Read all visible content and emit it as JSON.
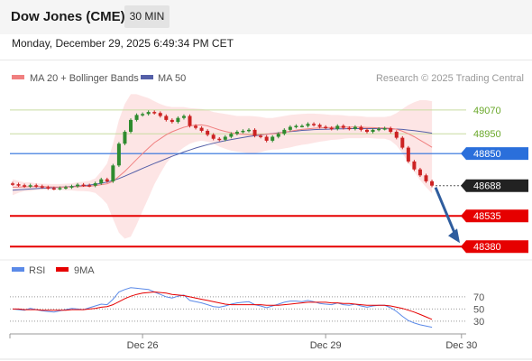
{
  "header": {
    "title": "Dow Jones (CME)",
    "timeframe": "30 MIN",
    "datetime": "Monday, December 29, 2025 6:49:34 PM CET"
  },
  "colors": {
    "ma20": "#f08080",
    "ma50": "#5560a8",
    "bollinger_fill": "#fde0e0",
    "up_candle": "#2e8b2e",
    "down_candle": "#cc2222",
    "resistance": "#9acd32",
    "pivot": "#2a6fdb",
    "support": "#e60000",
    "current": "#222222",
    "arrow": "#2f5d9e",
    "rsi": "#5b8ae8",
    "rsi_ma": "#e60000"
  },
  "legend": {
    "ma20_label": "MA 20 + Bollinger Bands",
    "ma50_label": "MA 50",
    "credit": "Research © 2025 Trading Central"
  },
  "rsi_legend": {
    "rsi_label": "RSI",
    "ma_label": "9MA"
  },
  "chart_data": {
    "type": "candlestick",
    "price_ylim": [
      48340,
      49170
    ],
    "levels": [
      {
        "label": "49070",
        "value": 49070,
        "kind": "resistance"
      },
      {
        "label": "48950",
        "value": 48950,
        "kind": "resistance"
      },
      {
        "label": "48850",
        "value": 48850,
        "kind": "pivot"
      },
      {
        "label": "48688",
        "value": 48688,
        "kind": "current"
      },
      {
        "label": "48535",
        "value": 48535,
        "kind": "support"
      },
      {
        "label": "48380",
        "value": 48380,
        "kind": "support"
      }
    ],
    "x_ticks": [
      {
        "label": "Dec 26",
        "index": 22
      },
      {
        "label": "Dec 29",
        "index": 53
      },
      {
        "label": "Dec 30",
        "index": 76
      }
    ],
    "closes": [
      48695,
      48690,
      48685,
      48690,
      48685,
      48680,
      48675,
      48673,
      48676,
      48680,
      48685,
      48693,
      48690,
      48688,
      48700,
      48720,
      48710,
      48790,
      48900,
      48960,
      49020,
      49045,
      49050,
      49060,
      49055,
      49040,
      49020,
      49010,
      49030,
      49040,
      48990,
      48980,
      48965,
      48945,
      48925,
      48920,
      48935,
      48950,
      48960,
      48965,
      48970,
      48940,
      48935,
      48915,
      48935,
      48950,
      48970,
      48985,
      48990,
      48990,
      49000,
      48995,
      48985,
      48980,
      48975,
      48990,
      48980,
      48975,
      48985,
      48970,
      48960,
      48970,
      48975,
      48978,
      48960,
      48930,
      48880,
      48810,
      48770,
      48740,
      48710,
      48688
    ],
    "ma20": [
      48680,
      48681,
      48682,
      48683,
      48683,
      48683,
      48682,
      48681,
      48681,
      48681,
      48682,
      48683,
      48684,
      48685,
      48688,
      48693,
      48697,
      48710,
      48735,
      48760,
      48790,
      48820,
      48850,
      48878,
      48905,
      48925,
      48945,
      48960,
      48972,
      48983,
      48990,
      48994,
      48995,
      48990,
      48980,
      48970,
      48962,
      48955,
      48950,
      48948,
      48946,
      48945,
      48946,
      48948,
      48950,
      48953,
      48958,
      48963,
      48968,
      48972,
      48975,
      48978,
      48980,
      48981,
      48982,
      48983,
      48984,
      48984,
      48984,
      48983,
      48982,
      48981,
      48980,
      48980,
      48978,
      48973,
      48963,
      48950,
      48935,
      48918,
      48900,
      48882
    ],
    "bb_upper": [
      48720,
      48712,
      48705,
      48705,
      48700,
      48698,
      48697,
      48696,
      48696,
      48698,
      48700,
      48705,
      48708,
      48712,
      48725,
      48760,
      48800,
      48900,
      49020,
      49100,
      49150,
      49150,
      49140,
      49130,
      49115,
      49100,
      49090,
      49085,
      49085,
      49085,
      49080,
      49078,
      49075,
      49070,
      49060,
      49055,
      49050,
      49045,
      49040,
      49040,
      49040,
      49038,
      49035,
      49030,
      49030,
      49035,
      49040,
      49045,
      49048,
      49050,
      49052,
      49052,
      49050,
      49048,
      49045,
      49045,
      49043,
      49040,
      49040,
      49038,
      49035,
      49035,
      49035,
      49035,
      49040,
      49055,
      49075,
      49095,
      49110,
      49120,
      49120,
      49115
    ],
    "bb_lower": [
      48640,
      48652,
      48660,
      48661,
      48666,
      48668,
      48667,
      48666,
      48666,
      48664,
      48664,
      48661,
      48660,
      48658,
      48651,
      48626,
      48594,
      48520,
      48450,
      48420,
      48430,
      48490,
      48560,
      48626,
      48695,
      48750,
      48800,
      48835,
      48859,
      48881,
      48900,
      48910,
      48915,
      48910,
      48900,
      48885,
      48874,
      48865,
      48860,
      48856,
      48852,
      48852,
      48857,
      48866,
      48870,
      48871,
      48876,
      48881,
      48888,
      48894,
      48898,
      48904,
      48910,
      48914,
      48919,
      48921,
      48925,
      48928,
      48928,
      48928,
      48929,
      48927,
      48925,
      48925,
      48916,
      48891,
      48851,
      48805,
      48760,
      48716,
      48680,
      48649
    ],
    "ma50": [
      48665,
      48667,
      48669,
      48671,
      48673,
      48675,
      48676,
      48678,
      48680,
      48682,
      48684,
      48686,
      48688,
      48691,
      48695,
      48700,
      48706,
      48714,
      48724,
      48736,
      48749,
      48762,
      48775,
      48788,
      48800,
      48812,
      48824,
      48836,
      48847,
      48858,
      48868,
      48878,
      48887,
      48895,
      48902,
      48909,
      48915,
      48921,
      48926,
      48931,
      48936,
      48940,
      48944,
      48948,
      48951,
      48955,
      48958,
      48961,
      48964,
      48967,
      48969,
      48971,
      48972,
      48973,
      48974,
      48975,
      48975,
      48976,
      48976,
      48976,
      48976,
      48976,
      48976,
      48976,
      48975,
      48974,
      48972,
      48969,
      48966,
      48962,
      48958,
      48953
    ],
    "rsi": {
      "ylim": [
        15,
        95
      ],
      "levels": [
        30,
        50,
        70
      ],
      "rsi": [
        50,
        49,
        48,
        51,
        49,
        47,
        46,
        45,
        47,
        49,
        51,
        50,
        49,
        52,
        55,
        58,
        57,
        66,
        78,
        82,
        85,
        84,
        83,
        82,
        78,
        74,
        70,
        68,
        71,
        73,
        64,
        62,
        60,
        57,
        54,
        53,
        55,
        58,
        60,
        61,
        62,
        57,
        55,
        52,
        55,
        58,
        61,
        63,
        63,
        62,
        64,
        62,
        59,
        58,
        57,
        60,
        57,
        56,
        58,
        55,
        53,
        55,
        56,
        56,
        52,
        46,
        38,
        31,
        27,
        24,
        22,
        20
      ],
      "ma": [
        50,
        50,
        49,
        49,
        49,
        48,
        48,
        48,
        48,
        48,
        49,
        49,
        49,
        50,
        51,
        53,
        54,
        57,
        62,
        67,
        71,
        74,
        76,
        77,
        78,
        77,
        76,
        74,
        73,
        72,
        70,
        68,
        66,
        64,
        62,
        60,
        58,
        57,
        57,
        57,
        57,
        57,
        57,
        56,
        56,
        56,
        57,
        58,
        59,
        60,
        61,
        61,
        61,
        61,
        60,
        60,
        59,
        59,
        58,
        57,
        56,
        56,
        56,
        56,
        55,
        53,
        51,
        48,
        45,
        41,
        37,
        33
      ]
    }
  }
}
